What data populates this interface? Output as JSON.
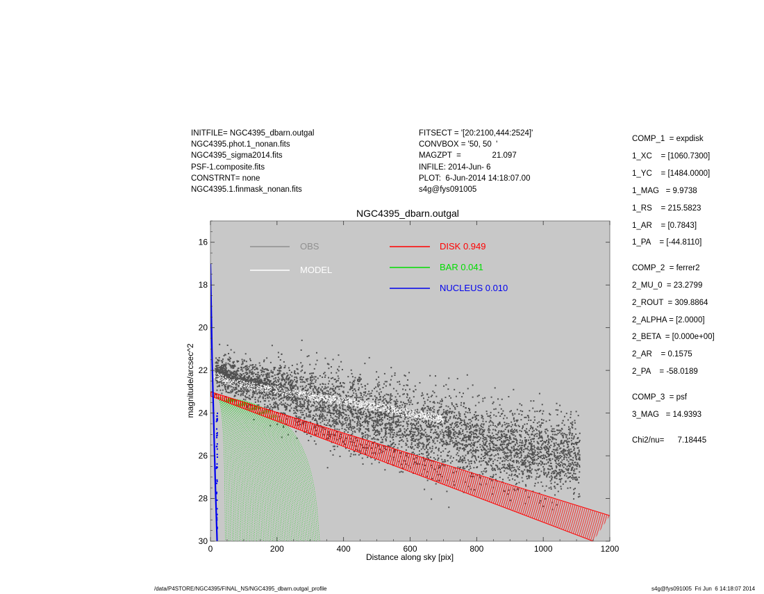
{
  "header": {
    "left": [
      "INITFILE= NGC4395_dbarn.outgal",
      "NGC4395.phot.1_nonan.fits",
      "NGC4395_sigma2014.fits",
      "PSF-1.composite.fits",
      "CONSTRNT= none",
      "NGC4395.1.finmask_nonan.fits"
    ],
    "right": [
      "FITSECT = '[20:2100,444:2524]'",
      "CONVBOX = '50, 50  '",
      "MAGZPT  =              21.097",
      "INFILE: 2014-Jun- 6",
      "PLOT:  6-Jun-2014 14:18:07.00",
      "s4g@fys091005"
    ]
  },
  "params": [
    "COMP_1  = expdisk",
    "1_XC    = [1060.7300]",
    "1_YC    = [1484.0000]",
    "1_MAG   = 9.9738",
    "1_RS    = 215.5823",
    "1_AR    = [0.7843]",
    "1_PA    = [-44.8110]",
    "COMP_2  = ferrer2",
    "2_MU_0  = 23.2799",
    "2_ROUT  = 309.8864",
    "2_ALPHA = [2.0000]",
    "2_BETA  = [0.000e+00]",
    "2_AR    = 0.1575",
    "2_PA    = -58.0189",
    "COMP_3  = psf",
    "3_MAG   = 14.9393",
    "Chi2/nu=      7.18445"
  ],
  "footer": {
    "left": "/data/P4STORE/NGC4395/FINAL_NS/NGC4395_dbarn.outgal_profile",
    "right": "s4g@fys091005  Fri Jun  6 14:18:07 2014"
  },
  "chart_data": {
    "type": "scatter",
    "title": "NGC4395_dbarn.outgal",
    "xlabel": "Distance along sky [pix]",
    "ylabel": "magnitude/arcsec^2",
    "xlim": [
      0,
      1200
    ],
    "ylim": [
      15,
      30
    ],
    "y_inverted": true,
    "x_ticks": [
      "0",
      "200",
      "400",
      "600",
      "800",
      "1000",
      "1200"
    ],
    "y_ticks": [
      "16",
      "18",
      "20",
      "22",
      "24",
      "26",
      "28",
      "30"
    ],
    "background": "#c8c8c8",
    "legend": [
      {
        "label": "OBS",
        "color": "#909090"
      },
      {
        "label": "MODEL",
        "color": "#ffffff"
      },
      {
        "label": "DISK  0.949",
        "color": "#ff0000"
      },
      {
        "label": "BAR  0.041",
        "color": "#00dd00"
      },
      {
        "label": "NUCLEUS  0.010",
        "color": "#0000ee"
      }
    ],
    "series": [
      {
        "name": "OBS",
        "color": "#505050",
        "kind": "scatter",
        "trend": {
          "x": [
            15,
            200,
            400,
            600,
            800,
            1000,
            1110
          ],
          "y": [
            22.1,
            22.9,
            23.8,
            24.6,
            25.3,
            25.9,
            26.0
          ]
        }
      },
      {
        "name": "MODEL",
        "color": "#ffffff",
        "kind": "band",
        "x": [
          10,
          60,
          150,
          300,
          500,
          700
        ],
        "y": [
          22.2,
          22.55,
          22.8,
          23.2,
          23.7,
          24.3
        ]
      },
      {
        "name": "DISK  0.949",
        "color": "#ff0000",
        "kind": "band",
        "upper": {
          "x": [
            0,
            1200
          ],
          "y": [
            23.0,
            28.8
          ]
        },
        "lower": {
          "x": [
            0,
            1150
          ],
          "y": [
            23.2,
            30.0
          ]
        }
      },
      {
        "name": "BAR  0.041",
        "color": "#00dd00",
        "kind": "ferrers",
        "mu0": 23.28,
        "rout": 309.9,
        "x_start": 20
      },
      {
        "name": "NUCLEUS  0.010",
        "color": "#0000ee",
        "kind": "psf",
        "x": [
          0,
          5,
          10,
          15,
          20
        ],
        "y": [
          17.0,
          21.5,
          24.5,
          27.5,
          30.0
        ]
      }
    ]
  }
}
